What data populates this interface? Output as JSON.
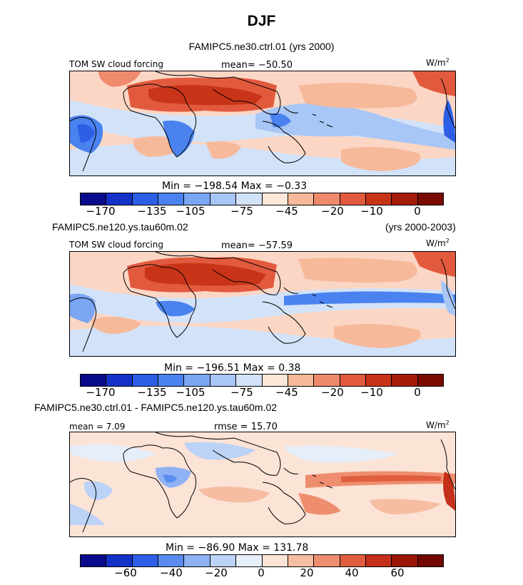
{
  "title": "DJF",
  "panels": [
    {
      "subtitle_left": "",
      "subtitle_center": "FAMIPC5.ne30.ctrl.01 (yrs 2000)",
      "subtitle_right": "",
      "left_label": "TOM SW cloud forcing",
      "center_label": "mean= −50.50",
      "units": "W/m",
      "units_sup": "2",
      "minmax": "Min = −198.54  Max =   −0.33",
      "colorbar_ticks": [
        "−170",
        "−135",
        "−105",
        "−75",
        "−45",
        "−20",
        "−10",
        "0"
      ],
      "mean": -50.5,
      "min": -198.54,
      "max": -0.33
    },
    {
      "subtitle_left": "FAMIPC5.ne120.ys.tau60m.02",
      "subtitle_center": "",
      "subtitle_right": "(yrs 2000-2003)",
      "left_label": "TOM SW cloud forcing",
      "center_label": "mean= −57.59",
      "units": "W/m",
      "units_sup": "2",
      "minmax": "Min = −196.51  Max =    0.38",
      "colorbar_ticks": [
        "−170",
        "−135",
        "−105",
        "−75",
        "−45",
        "−20",
        "−10",
        "0"
      ],
      "mean": -57.59,
      "min": -196.51,
      "max": 0.38
    },
    {
      "subtitle_left": "FAMIPC5.ne30.ctrl.01 - FAMIPC5.ne120.ys.tau60m.02",
      "subtitle_center": "",
      "subtitle_right": "",
      "left_label": "mean =   7.09",
      "center_label": "rmse =  15.70",
      "units": "W/m",
      "units_sup": "2",
      "minmax": "Min = −86.90  Max = 131.78",
      "colorbar_ticks": [
        "−60",
        "−40",
        "−20",
        "0",
        "20",
        "40",
        "60"
      ],
      "mean": 7.09,
      "rmse": 15.7,
      "min": -86.9,
      "max": 131.78
    }
  ],
  "colors": {
    "field_palette": [
      "#0a0a8c",
      "#1432c8",
      "#2c5ee6",
      "#4a82f0",
      "#7aa6f4",
      "#a8c6f6",
      "#d2e2f8",
      "#fde7d8",
      "#f6b99a",
      "#ef8a6c",
      "#e25a3e",
      "#c93418",
      "#a41c08",
      "#7a0a00"
    ],
    "diff_palette": [
      "#0a0a8c",
      "#1432c8",
      "#2c5ee6",
      "#5a8cf0",
      "#8eb2f4",
      "#bcd2f6",
      "#e6eefa",
      "#fbe3d6",
      "#f6bda2",
      "#ee8e6e",
      "#e05e40",
      "#c4301a",
      "#9c1606",
      "#720800"
    ]
  }
}
